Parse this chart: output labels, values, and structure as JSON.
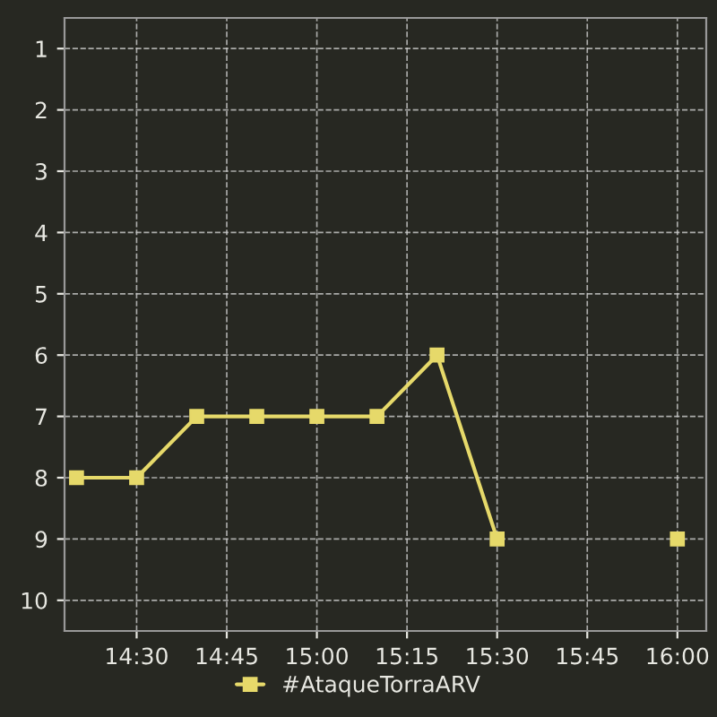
{
  "chart_data": {
    "type": "line",
    "x": [
      14.3333,
      14.5,
      14.6667,
      14.8333,
      15.0,
      15.1667,
      15.3333,
      15.5,
      15.6667,
      15.8333,
      16.0
    ],
    "series": [
      {
        "name": "#AtaqueTorraARV",
        "color": "#e6d96a",
        "values": [
          8,
          8,
          7,
          7,
          7,
          7,
          6,
          9,
          null,
          null,
          9
        ]
      }
    ],
    "xlim": [
      14.3,
      16.08
    ],
    "xticks": [
      {
        "value": 14.5,
        "label": "14:30"
      },
      {
        "value": 14.75,
        "label": "14:45"
      },
      {
        "value": 15.0,
        "label": "15:00"
      },
      {
        "value": 15.25,
        "label": "15:15"
      },
      {
        "value": 15.5,
        "label": "15:30"
      },
      {
        "value": 15.75,
        "label": "15:45"
      },
      {
        "value": 16.0,
        "label": "16:00"
      }
    ],
    "ylim": [
      10.5,
      0.5
    ],
    "yticks": [
      1,
      2,
      3,
      4,
      5,
      6,
      7,
      8,
      9,
      10
    ],
    "grid": true,
    "legend": "bottom",
    "marker": "square",
    "line_style": "solid"
  }
}
